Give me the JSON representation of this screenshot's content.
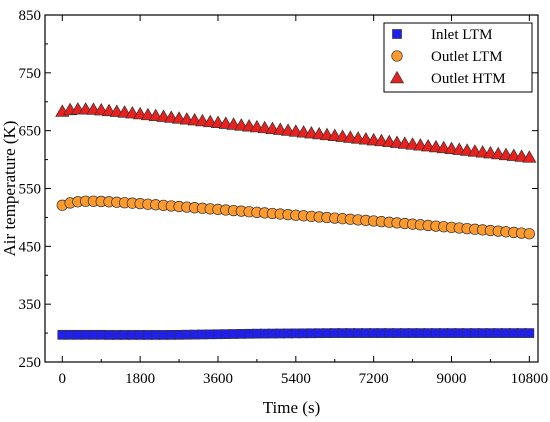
{
  "chart_data": {
    "type": "scatter",
    "xlabel": "Time (s)",
    "ylabel": "Air temperature (K)",
    "xlim": [
      -400,
      11000
    ],
    "ylim": [
      250,
      850
    ],
    "xticks": [
      0,
      1800,
      3600,
      5400,
      7200,
      9000,
      10800
    ],
    "yticks": [
      250,
      350,
      450,
      550,
      650,
      750,
      850
    ],
    "legend_position": "top-right",
    "grid": false,
    "series": [
      {
        "name": "Inlet LTM",
        "marker": "square",
        "color": "#1f1ff0",
        "x": [
          0,
          180,
          360,
          540,
          720,
          900,
          1080,
          1260,
          1440,
          1620,
          1800,
          1980,
          2160,
          2340,
          2520,
          2700,
          2880,
          3060,
          3240,
          3420,
          3600,
          3780,
          3960,
          4140,
          4320,
          4500,
          4680,
          4860,
          5040,
          5220,
          5400,
          5580,
          5760,
          5940,
          6120,
          6300,
          6480,
          6660,
          6840,
          7020,
          7200,
          7380,
          7560,
          7740,
          7920,
          8100,
          8280,
          8460,
          8640,
          8820,
          9000,
          9180,
          9360,
          9540,
          9720,
          9900,
          10080,
          10260,
          10440,
          10620,
          10800
        ],
        "y": [
          297,
          297,
          297,
          297,
          297,
          297,
          296.8,
          296.8,
          296.8,
          296.8,
          296.8,
          296.8,
          296.8,
          296.8,
          296.9,
          297,
          297.2,
          297.4,
          297.6,
          297.8,
          298,
          298.2,
          298.4,
          298.6,
          298.8,
          299,
          299.1,
          299.2,
          299.3,
          299.4,
          299.5,
          299.6,
          299.7,
          299.8,
          299.9,
          300,
          300,
          300,
          300,
          300,
          300,
          300,
          300,
          300,
          300,
          300,
          300,
          300,
          300,
          300,
          300,
          300,
          300,
          300,
          300,
          300,
          300,
          300,
          300,
          300,
          300
        ]
      },
      {
        "name": "Outlet LTM",
        "marker": "circle",
        "color": "#ff9a2e",
        "x": [
          0,
          180,
          360,
          540,
          720,
          900,
          1080,
          1260,
          1440,
          1620,
          1800,
          1980,
          2160,
          2340,
          2520,
          2700,
          2880,
          3060,
          3240,
          3420,
          3600,
          3780,
          3960,
          4140,
          4320,
          4500,
          4680,
          4860,
          5040,
          5220,
          5400,
          5580,
          5760,
          5940,
          6120,
          6300,
          6480,
          6660,
          6840,
          7020,
          7200,
          7380,
          7560,
          7740,
          7920,
          8100,
          8280,
          8460,
          8640,
          8820,
          9000,
          9180,
          9360,
          9540,
          9720,
          9900,
          10080,
          10260,
          10440,
          10620,
          10800
        ],
        "y": [
          521,
          525,
          527,
          528,
          528,
          527.6,
          527,
          526.2,
          525.4,
          524.6,
          523.8,
          522.8,
          521.8,
          520.8,
          519.8,
          518.8,
          517.8,
          516.8,
          515.8,
          514.8,
          513.8,
          512.8,
          511.8,
          510.8,
          509.8,
          508.8,
          507.8,
          506.8,
          505.8,
          504.8,
          503.8,
          502.8,
          501.8,
          500.8,
          499.8,
          498.8,
          497.8,
          496.8,
          495.8,
          494.8,
          493.8,
          492.7,
          491.6,
          490.5,
          489.4,
          488.3,
          487.2,
          486.1,
          485,
          483.9,
          482.8,
          481.7,
          480.6,
          479.5,
          478.4,
          477.3,
          476.2,
          475.1,
          474,
          472.9,
          471.8
        ]
      },
      {
        "name": "Outlet HTM",
        "marker": "triangle",
        "color": "#e8201e",
        "x": [
          0,
          180,
          360,
          540,
          720,
          900,
          1080,
          1260,
          1440,
          1620,
          1800,
          1980,
          2160,
          2340,
          2520,
          2700,
          2880,
          3060,
          3240,
          3420,
          3600,
          3780,
          3960,
          4140,
          4320,
          4500,
          4680,
          4860,
          5040,
          5220,
          5400,
          5580,
          5760,
          5940,
          6120,
          6300,
          6480,
          6660,
          6840,
          7020,
          7200,
          7380,
          7560,
          7740,
          7920,
          8100,
          8280,
          8460,
          8640,
          8820,
          9000,
          9180,
          9360,
          9540,
          9720,
          9900,
          10080,
          10260,
          10440,
          10620,
          10800
        ],
        "y": [
          683,
          686,
          687,
          687,
          686.5,
          685.5,
          684.2,
          682.9,
          681.6,
          680.2,
          678.7,
          677.2,
          675.7,
          674.2,
          672.7,
          671.2,
          669.7,
          668.2,
          666.7,
          665.2,
          663.7,
          662.2,
          660.7,
          659.2,
          657.7,
          656.2,
          654.7,
          653.2,
          651.7,
          650.2,
          648.7,
          647.2,
          645.7,
          644.2,
          642.7,
          641.2,
          639.7,
          638.2,
          636.7,
          635.2,
          633.7,
          632.2,
          630.7,
          629.2,
          627.7,
          626.2,
          624.7,
          623.2,
          621.7,
          620.2,
          618.7,
          617.2,
          615.7,
          614.2,
          612.7,
          611.2,
          609.7,
          608.2,
          606.7,
          605.2,
          603.7
        ]
      }
    ]
  }
}
